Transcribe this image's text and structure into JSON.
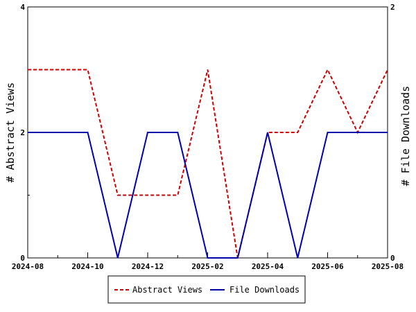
{
  "chart_data": {
    "type": "line",
    "x": [
      "2024-08",
      "2024-09",
      "2024-10",
      "2024-11",
      "2024-12",
      "2025-01",
      "2025-02",
      "2025-03",
      "2025-04",
      "2025-05",
      "2025-06",
      "2025-07",
      "2025-08"
    ],
    "x_ticks": [
      "2024-08",
      "2024-10",
      "2024-12",
      "2025-02",
      "2025-04",
      "2025-06",
      "2025-08"
    ],
    "series": [
      {
        "name": "Abstract Views",
        "axis": "left",
        "color": "#cc0000",
        "dash": "dashed",
        "values": [
          3,
          3,
          3,
          1,
          1,
          1,
          3,
          0,
          2,
          2,
          3,
          2,
          3
        ]
      },
      {
        "name": "File Downloads",
        "axis": "right",
        "color": "#0000aa",
        "dash": "solid",
        "values": [
          1,
          1,
          1,
          0,
          1,
          1,
          0,
          0,
          1,
          0,
          1,
          1,
          1
        ]
      }
    ],
    "ylabel_left": "# Abstract Views",
    "ylabel_right": "# File Downloads",
    "ylim_left": [
      0,
      4
    ],
    "ylim_right": [
      0,
      2
    ],
    "yticks_left": [
      "0",
      "2",
      "4"
    ],
    "yticks_right": [
      "0",
      "1",
      "2"
    ],
    "grid": false,
    "legend_position": "bottom"
  }
}
